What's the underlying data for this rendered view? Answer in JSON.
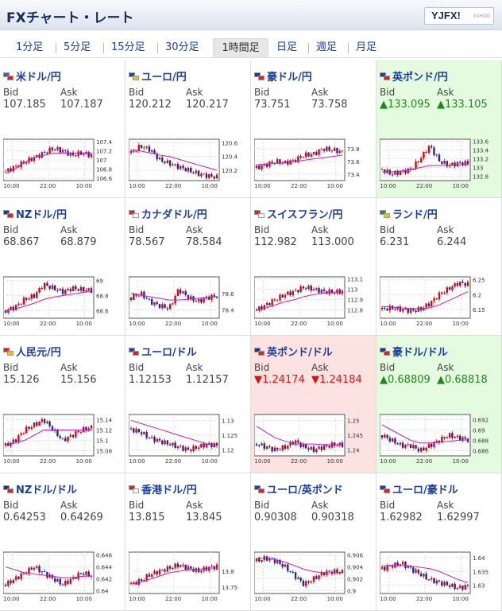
{
  "header": {
    "title": "FXチャート・レート",
    "logo": "YJFX!",
    "logo_sub": "YAHOO"
  },
  "tabs": [
    "1分足",
    "5分足",
    "15分足",
    "30分足",
    "1時間足",
    "日足",
    "週足",
    "月足"
  ],
  "active_tab": 4,
  "labels": {
    "bid": "Bid",
    "ask": "Ask"
  },
  "tiles": [
    {
      "pair": "米ドル/円",
      "bid": "107.185",
      "ask": "107.187",
      "trend": "",
      "flag_a": "#3a5fbf",
      "flag_b": "#d22",
      "y_ticks": [
        "107.4",
        "107.2",
        "107",
        "106.8",
        "106.6"
      ],
      "ylim": [
        106.55,
        107.45
      ],
      "x_ticks": [
        "10:00",
        "22:00",
        "10:00"
      ],
      "close": [
        106.75,
        106.85,
        106.95,
        107.05,
        107.15,
        107.25,
        107.2,
        107.1,
        107.15,
        107.1
      ],
      "ma": [
        106.7,
        106.8,
        106.95,
        107.05,
        107.1,
        107.15,
        107.15,
        107.15,
        107.15,
        107.15
      ]
    },
    {
      "pair": "ユーロ/円",
      "bid": "120.212",
      "ask": "120.217",
      "trend": "",
      "flag_a": "#2244aa",
      "flag_b": "#e8c020",
      "y_ticks": [
        "120.6",
        "120.4",
        "120.2"
      ],
      "ylim": [
        120.05,
        120.65
      ],
      "x_ticks": [
        "10:00",
        "22:00",
        "10:00"
      ],
      "close": [
        120.45,
        120.55,
        120.5,
        120.35,
        120.3,
        120.25,
        120.2,
        120.15,
        120.12,
        120.1
      ],
      "ma": [
        120.5,
        120.48,
        120.45,
        120.42,
        120.4,
        120.36,
        120.32,
        120.28,
        120.24,
        120.2
      ]
    },
    {
      "pair": "豪ドル/円",
      "bid": "73.751",
      "ask": "73.758",
      "trend": "",
      "flag_a": "#223a8a",
      "flag_b": "#d22",
      "y_ticks": [
        "73.8",
        "73.6",
        "73.4"
      ],
      "ylim": [
        73.3,
        73.95
      ],
      "x_ticks": [
        "10:00",
        "22:00",
        "10:00"
      ],
      "close": [
        73.5,
        73.55,
        73.6,
        73.58,
        73.62,
        73.7,
        73.72,
        73.8,
        73.78,
        73.75
      ],
      "ma": [
        73.55,
        73.56,
        73.57,
        73.58,
        73.6,
        73.62,
        73.64,
        73.66,
        73.68,
        73.7
      ]
    },
    {
      "pair": "英ポンド/円",
      "bid": "▲133.095",
      "ask": "▲133.105",
      "trend": "up",
      "flag_a": "#223a8a",
      "flag_b": "#d22",
      "y_ticks": [
        "133.6",
        "133.4",
        "133.2",
        "133",
        "132.8"
      ],
      "ylim": [
        132.7,
        133.65
      ],
      "x_ticks": [
        "10:00",
        "22:00",
        "10:00"
      ],
      "close": [
        132.95,
        132.85,
        132.9,
        132.95,
        133.2,
        133.5,
        133.15,
        133.05,
        133.1,
        133.1
      ],
      "ma": [
        132.9,
        132.9,
        132.92,
        132.95,
        133.0,
        133.05,
        133.05,
        133.05,
        133.06,
        133.07
      ]
    },
    {
      "pair": "NZドル/円",
      "bid": "68.867",
      "ask": "68.879",
      "trend": "",
      "flag_a": "#223a8a",
      "flag_b": "#d22",
      "y_ticks": [
        "69",
        "68.8",
        "68.6"
      ],
      "ylim": [
        68.5,
        69.05
      ],
      "x_ticks": [
        "10:00",
        "22:00",
        "10:00"
      ],
      "close": [
        68.6,
        68.65,
        68.75,
        68.8,
        68.95,
        68.9,
        68.85,
        68.9,
        68.88,
        68.87
      ],
      "ma": [
        68.6,
        68.62,
        68.66,
        68.7,
        68.75,
        68.78,
        68.8,
        68.82,
        68.84,
        68.86
      ]
    },
    {
      "pair": "カナダドル/円",
      "bid": "78.567",
      "ask": "78.584",
      "trend": "",
      "flag_a": "#d22",
      "flag_b": "#fff",
      "y_ticks": [
        "78.6",
        "78.4"
      ],
      "ylim": [
        78.3,
        78.8
      ],
      "x_ticks": [
        "10:00",
        "22:00",
        "10:00"
      ],
      "close": [
        78.55,
        78.6,
        78.5,
        78.45,
        78.42,
        78.65,
        78.55,
        78.5,
        78.55,
        78.57
      ],
      "ma": [
        78.6,
        78.58,
        78.56,
        78.54,
        78.52,
        78.52,
        78.53,
        78.54,
        78.55,
        78.56
      ]
    },
    {
      "pair": "スイスフラン/円",
      "bid": "112.982",
      "ask": "113.000",
      "trend": "",
      "flag_a": "#d22",
      "flag_b": "#fff",
      "y_ticks": [
        "113.1",
        "113",
        "112.9",
        "112.8"
      ],
      "ylim": [
        112.72,
        113.12
      ],
      "x_ticks": [
        "10:00",
        "22:00",
        "10:00"
      ],
      "close": [
        112.8,
        112.85,
        112.9,
        112.95,
        112.98,
        113.02,
        113.0,
        112.98,
        112.97,
        112.98
      ],
      "ma": [
        112.8,
        112.82,
        112.85,
        112.88,
        112.9,
        112.93,
        112.95,
        112.96,
        112.97,
        112.98
      ]
    },
    {
      "pair": "ランド/円",
      "bid": "6.231",
      "ask": "6.244",
      "trend": "",
      "flag_a": "#2a8a3a",
      "flag_b": "#e8c020",
      "y_ticks": [
        "6.25",
        "6.2",
        "6.15"
      ],
      "ylim": [
        6.12,
        6.26
      ],
      "x_ticks": [
        "10:00",
        "22:00",
        "10:00"
      ],
      "close": [
        6.15,
        6.155,
        6.15,
        6.145,
        6.15,
        6.17,
        6.2,
        6.22,
        6.24,
        6.235
      ],
      "ma": [
        6.16,
        6.158,
        6.155,
        6.153,
        6.152,
        6.155,
        6.165,
        6.18,
        6.195,
        6.21
      ]
    },
    {
      "pair": "人民元/円",
      "bid": "15.126",
      "ask": "15.156",
      "trend": "",
      "flag_a": "#d22",
      "flag_b": "#e8c020",
      "y_ticks": [
        "15.14",
        "15.12",
        "15.1",
        "15.08"
      ],
      "ylim": [
        15.07,
        15.15
      ],
      "x_ticks": [
        "10:00",
        "22:00",
        "10:00"
      ],
      "close": [
        15.09,
        15.1,
        15.12,
        15.13,
        15.14,
        15.12,
        15.1,
        15.11,
        15.12,
        15.125
      ],
      "ma": [
        15.09,
        15.095,
        15.1,
        15.11,
        15.12,
        15.12,
        15.12,
        15.12,
        15.12,
        15.12
      ]
    },
    {
      "pair": "ユーロ/ドル",
      "bid": "1.12153",
      "ask": "1.12157",
      "trend": "",
      "flag_a": "#2244aa",
      "flag_b": "#d22",
      "y_ticks": [
        "1.13",
        "1.125",
        "1.12"
      ],
      "ylim": [
        1.118,
        1.132
      ],
      "x_ticks": [
        "10:00",
        "22:00",
        "10:00"
      ],
      "close": [
        1.127,
        1.126,
        1.124,
        1.123,
        1.122,
        1.121,
        1.12,
        1.121,
        1.122,
        1.1215
      ],
      "ma": [
        1.13,
        1.129,
        1.128,
        1.127,
        1.126,
        1.125,
        1.124,
        1.123,
        1.122,
        1.1215
      ]
    },
    {
      "pair": "英ポンド/ドル",
      "bid": "▼1.24174",
      "ask": "▼1.24184",
      "trend": "down",
      "flag_a": "#223a8a",
      "flag_b": "#d22",
      "y_ticks": [
        "1.25",
        "1.245",
        "1.24"
      ],
      "ylim": [
        1.238,
        1.252
      ],
      "x_ticks": [
        "10:00",
        "22:00",
        "10:00"
      ],
      "close": [
        1.242,
        1.241,
        1.24,
        1.241,
        1.243,
        1.241,
        1.24,
        1.241,
        1.2418,
        1.2417
      ],
      "ma": [
        1.248,
        1.246,
        1.244,
        1.243,
        1.242,
        1.242,
        1.242,
        1.2418,
        1.2418,
        1.2418
      ]
    },
    {
      "pair": "豪ドル/ドル",
      "bid": "▲0.68809",
      "ask": "▲0.68818",
      "trend": "up",
      "flag_a": "#223a8a",
      "flag_b": "#d22",
      "y_ticks": [
        "0.692",
        "0.69",
        "0.688",
        "0.686"
      ],
      "ylim": [
        0.685,
        0.693
      ],
      "x_ticks": [
        "10:00",
        "22:00",
        "10:00"
      ],
      "close": [
        0.689,
        0.688,
        0.687,
        0.687,
        0.686,
        0.687,
        0.688,
        0.689,
        0.6885,
        0.6881
      ],
      "ma": [
        0.691,
        0.69,
        0.689,
        0.688,
        0.6875,
        0.6875,
        0.6876,
        0.6878,
        0.688,
        0.6881
      ]
    },
    {
      "pair": "NZドル/ドル",
      "bid": "0.64253",
      "ask": "0.64269",
      "trend": "",
      "flag_a": "#223a8a",
      "flag_b": "#d22",
      "y_ticks": [
        "0.646",
        "0.644",
        "0.642",
        "0.64"
      ],
      "ylim": [
        0.6395,
        0.6465
      ],
      "x_ticks": [
        "10:00",
        "22:00",
        "10:00"
      ],
      "close": [
        0.641,
        0.642,
        0.643,
        0.644,
        0.643,
        0.642,
        0.641,
        0.642,
        0.643,
        0.6425
      ],
      "ma": [
        0.644,
        0.6435,
        0.643,
        0.6428,
        0.6426,
        0.6424,
        0.6422,
        0.6422,
        0.6424,
        0.6425
      ]
    },
    {
      "pair": "香港ドル/円",
      "bid": "13.815",
      "ask": "13.845",
      "trend": "",
      "flag_a": "#d22",
      "flag_b": "#fff",
      "y_ticks": [
        "13.8",
        "13.75"
      ],
      "ylim": [
        13.73,
        13.86
      ],
      "x_ticks": [
        "10:00",
        "22:00",
        "10:00"
      ],
      "close": [
        13.76,
        13.77,
        13.79,
        13.8,
        13.81,
        13.82,
        13.81,
        13.8,
        13.81,
        13.815
      ],
      "ma": [
        13.76,
        13.765,
        13.775,
        13.785,
        13.795,
        13.8,
        13.805,
        13.805,
        13.81,
        13.81
      ]
    },
    {
      "pair": "ユーロ/英ポンド",
      "bid": "0.90308",
      "ask": "0.90318",
      "trend": "",
      "flag_a": "#2244aa",
      "flag_b": "#d22",
      "y_ticks": [
        "0.906",
        "0.904",
        "0.902",
        "0.9"
      ],
      "ylim": [
        0.8995,
        0.9065
      ],
      "x_ticks": [
        "10:00",
        "22:00",
        "10:00"
      ],
      "close": [
        0.905,
        0.9055,
        0.905,
        0.904,
        0.9025,
        0.901,
        0.902,
        0.903,
        0.9032,
        0.9031
      ],
      "ma": [
        0.9055,
        0.9055,
        0.9052,
        0.9048,
        0.9042,
        0.9036,
        0.9032,
        0.903,
        0.903,
        0.9031
      ]
    },
    {
      "pair": "ユーロ/豪ドル",
      "bid": "1.62982",
      "ask": "1.62997",
      "trend": "",
      "flag_a": "#2244aa",
      "flag_b": "#d22",
      "y_ticks": [
        "1.64",
        "1.635",
        "1.63"
      ],
      "ylim": [
        1.627,
        1.642
      ],
      "x_ticks": [
        "10:00",
        "22:00",
        "10:00"
      ],
      "close": [
        1.636,
        1.637,
        1.638,
        1.636,
        1.634,
        1.632,
        1.631,
        1.63,
        1.629,
        1.6298
      ],
      "ma": [
        1.637,
        1.6372,
        1.6372,
        1.637,
        1.6365,
        1.636,
        1.635,
        1.6335,
        1.632,
        1.631
      ]
    }
  ]
}
